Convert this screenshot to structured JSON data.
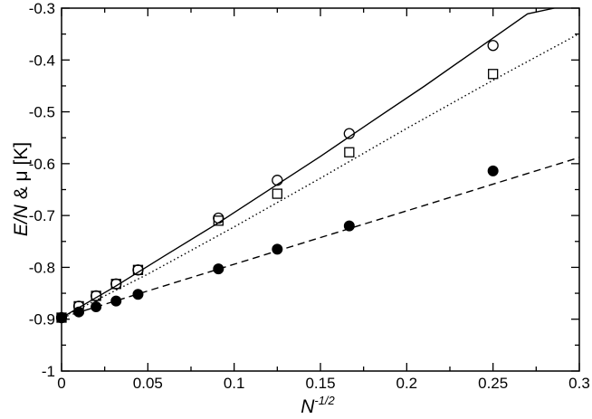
{
  "chart_data": {
    "type": "scatter",
    "title": "",
    "xlabel": "N",
    "xlabel_superscript": "-1/2",
    "ylabel_italic": "E/N",
    "ylabel_rest": " & μ  [K]",
    "xlim": [
      0,
      0.3
    ],
    "ylim": [
      -1,
      -0.3
    ],
    "grid": false,
    "x_ticks": [
      0,
      0.05,
      0.1,
      0.15,
      0.2,
      0.25,
      0.3
    ],
    "x_tick_labels": [
      "0",
      "0.05",
      "0.1",
      "0.15",
      "0.2",
      "0.25",
      "0.3"
    ],
    "y_ticks": [
      -1,
      -0.9,
      -0.8,
      -0.7,
      -0.6,
      -0.5,
      -0.4,
      -0.3
    ],
    "y_tick_labels": [
      "-1",
      "-0.9",
      "-0.8",
      "-0.7",
      "-0.6",
      "-0.5",
      "-0.4",
      "-0.3"
    ],
    "series": [
      {
        "marker": "open-circle",
        "x": [
          0.0,
          0.01,
          0.02,
          0.0316,
          0.0443,
          0.0909,
          0.125,
          0.1667,
          0.25
        ],
        "y": [
          -0.897,
          -0.875,
          -0.855,
          -0.832,
          -0.805,
          -0.705,
          -0.632,
          -0.542,
          -0.372
        ]
      },
      {
        "marker": "open-square",
        "x": [
          0.0,
          0.01,
          0.02,
          0.0316,
          0.0443,
          0.0909,
          0.125,
          0.1667,
          0.25
        ],
        "y": [
          -0.897,
          -0.875,
          -0.855,
          -0.832,
          -0.805,
          -0.71,
          -0.658,
          -0.578,
          -0.427
        ]
      },
      {
        "marker": "filled-circle",
        "x": [
          0.0,
          0.01,
          0.02,
          0.0316,
          0.0443,
          0.0909,
          0.125,
          0.1667,
          0.25
        ],
        "y": [
          -0.897,
          -0.886,
          -0.876,
          -0.865,
          -0.852,
          -0.803,
          -0.765,
          -0.72,
          -0.614
        ]
      }
    ],
    "fits": [
      {
        "style": "solid",
        "x": [
          0,
          0.03,
          0.06,
          0.09,
          0.12,
          0.15,
          0.18,
          0.21,
          0.24,
          0.27,
          0.2855
        ],
        "y": [
          -0.897,
          -0.839,
          -0.777,
          -0.716,
          -0.651,
          -0.586,
          -0.518,
          -0.451,
          -0.381,
          -0.311,
          -0.3
        ]
      },
      {
        "style": "dotted",
        "x": [
          0,
          0.05,
          0.1,
          0.15,
          0.2,
          0.25,
          0.3
        ],
        "y": [
          -0.897,
          -0.813,
          -0.722,
          -0.628,
          -0.532,
          -0.439,
          -0.349
        ]
      },
      {
        "style": "dashed",
        "x": [
          0,
          0.3
        ],
        "y": [
          -0.897,
          -0.588
        ]
      }
    ]
  }
}
